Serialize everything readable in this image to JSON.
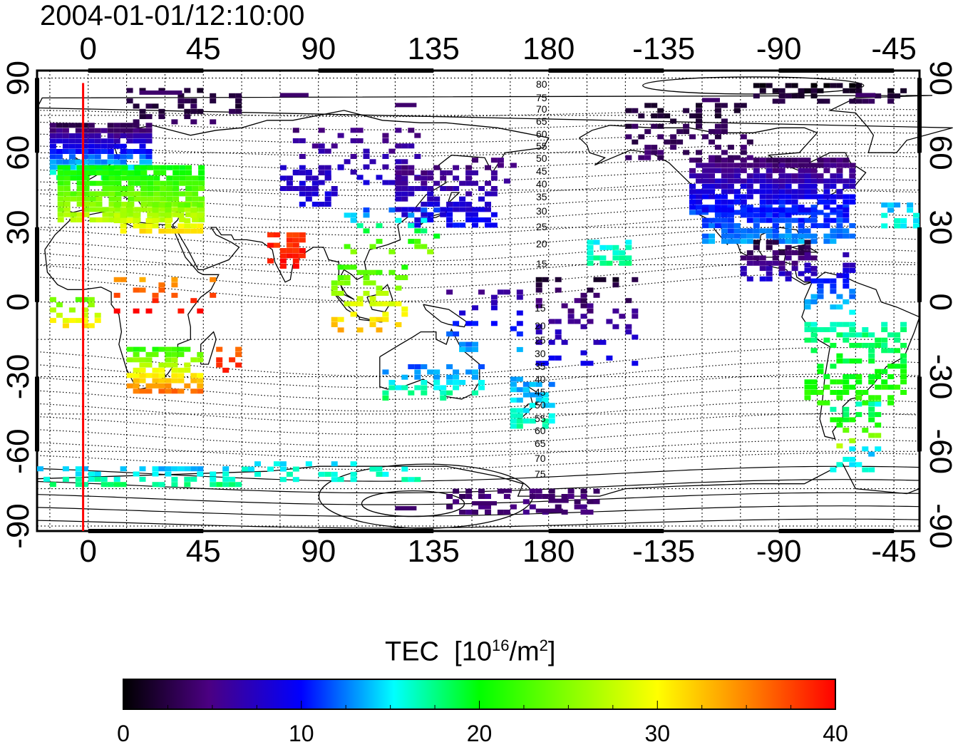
{
  "title": "2004-01-01/12:10:00",
  "map": {
    "lon_ticks": [
      "0",
      "45",
      "90",
      "135",
      "180",
      "-135",
      "-90",
      "-45"
    ],
    "lat_ticks": [
      "90",
      "60",
      "30",
      "0",
      "-30",
      "-60",
      "-90"
    ],
    "lon_extent": [
      -20,
      325
    ],
    "lat_extent": [
      -92,
      93
    ],
    "red_line_lon": -2,
    "contour_labels": [
      "80",
      "75",
      "70",
      "65",
      "60",
      "55",
      "50",
      "45",
      "40",
      "35",
      "30",
      "25",
      "20",
      "15",
      "15",
      "20",
      "25",
      "30",
      "35",
      "40",
      "45",
      "50",
      "55",
      "60",
      "65",
      "70",
      "75"
    ]
  },
  "colorbar": {
    "title": "TEC",
    "unit_base": "10",
    "unit_exp": "16",
    "unit_tail": "/m",
    "unit_exp2": "2",
    "range": [
      0,
      40
    ],
    "tick_labels": [
      "0",
      "10",
      "20",
      "30",
      "40"
    ],
    "colors": [
      "#000000",
      "#4b0082",
      "#0000ff",
      "#00ffff",
      "#00ff00",
      "#ffff00",
      "#ff0000"
    ]
  }
}
